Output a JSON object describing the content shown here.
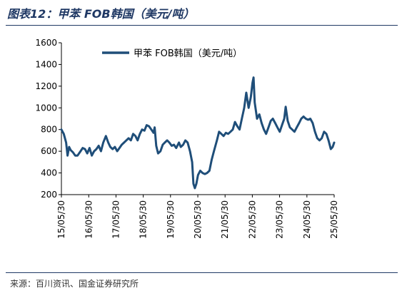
{
  "figure": {
    "title": "图表12：甲苯 FOB韩国（美元/吨）",
    "source": "来源：百川资讯、国金证券研究所"
  },
  "chart_data": {
    "type": "line",
    "legend": {
      "position": "top-left",
      "entries": [
        "甲苯 FOB韩国（美元/吨）"
      ]
    },
    "grid": false,
    "xlabel": "",
    "ylabel": "",
    "ylim": [
      200,
      1600
    ],
    "yticks": [
      200,
      400,
      600,
      800,
      1000,
      1200,
      1400,
      1600
    ],
    "xlim": [
      "2015-05-30",
      "2025-05-30"
    ],
    "xticks": [
      "15/05/30",
      "16/05/30",
      "17/05/30",
      "18/05/30",
      "19/05/30",
      "20/05/30",
      "21/05/30",
      "22/05/30",
      "23/05/30",
      "24/05/30",
      "25/05/30"
    ],
    "series": [
      {
        "name": "甲苯 FOB韩国（美元/吨）",
        "color": "#1f4e79",
        "points": [
          [
            "2015-05-30",
            800
          ],
          [
            "2015-07-01",
            760
          ],
          [
            "2015-08-01",
            680
          ],
          [
            "2015-08-20",
            560
          ],
          [
            "2015-09-10",
            640
          ],
          [
            "2015-10-01",
            610
          ],
          [
            "2015-11-01",
            590
          ],
          [
            "2015-12-01",
            560
          ],
          [
            "2016-01-01",
            560
          ],
          [
            "2016-02-10",
            600
          ],
          [
            "2016-03-10",
            630
          ],
          [
            "2016-04-10",
            620
          ],
          [
            "2016-05-10",
            580
          ],
          [
            "2016-06-10",
            630
          ],
          [
            "2016-07-10",
            560
          ],
          [
            "2016-08-10",
            600
          ],
          [
            "2016-09-10",
            620
          ],
          [
            "2016-10-10",
            650
          ],
          [
            "2016-11-10",
            600
          ],
          [
            "2016-12-10",
            680
          ],
          [
            "2017-01-15",
            740
          ],
          [
            "2017-02-15",
            680
          ],
          [
            "2017-03-15",
            640
          ],
          [
            "2017-04-15",
            620
          ],
          [
            "2017-05-15",
            640
          ],
          [
            "2017-06-15",
            600
          ],
          [
            "2017-07-15",
            630
          ],
          [
            "2017-08-15",
            660
          ],
          [
            "2017-09-15",
            680
          ],
          [
            "2017-10-15",
            700
          ],
          [
            "2017-11-15",
            720
          ],
          [
            "2017-12-15",
            700
          ],
          [
            "2018-01-15",
            760
          ],
          [
            "2018-02-15",
            740
          ],
          [
            "2018-03-15",
            700
          ],
          [
            "2018-04-15",
            760
          ],
          [
            "2018-05-15",
            800
          ],
          [
            "2018-06-15",
            790
          ],
          [
            "2018-07-15",
            840
          ],
          [
            "2018-08-15",
            830
          ],
          [
            "2018-09-15",
            800
          ],
          [
            "2018-10-15",
            770
          ],
          [
            "2018-10-30",
            820
          ],
          [
            "2018-11-20",
            650
          ],
          [
            "2018-12-15",
            580
          ],
          [
            "2019-01-15",
            600
          ],
          [
            "2019-02-15",
            660
          ],
          [
            "2019-03-15",
            680
          ],
          [
            "2019-04-15",
            700
          ],
          [
            "2019-05-15",
            680
          ],
          [
            "2019-06-15",
            650
          ],
          [
            "2019-07-15",
            660
          ],
          [
            "2019-08-15",
            630
          ],
          [
            "2019-09-20",
            680
          ],
          [
            "2019-10-15",
            640
          ],
          [
            "2019-11-15",
            660
          ],
          [
            "2019-12-15",
            700
          ],
          [
            "2020-01-15",
            680
          ],
          [
            "2020-02-15",
            600
          ],
          [
            "2020-03-15",
            500
          ],
          [
            "2020-04-01",
            300
          ],
          [
            "2020-04-20",
            260
          ],
          [
            "2020-05-10",
            300
          ],
          [
            "2020-06-01",
            380
          ],
          [
            "2020-07-01",
            420
          ],
          [
            "2020-08-01",
            400
          ],
          [
            "2020-09-01",
            390
          ],
          [
            "2020-10-01",
            400
          ],
          [
            "2020-11-01",
            420
          ],
          [
            "2020-12-01",
            520
          ],
          [
            "2021-01-01",
            600
          ],
          [
            "2021-02-10",
            700
          ],
          [
            "2021-03-10",
            780
          ],
          [
            "2021-04-10",
            760
          ],
          [
            "2021-05-10",
            740
          ],
          [
            "2021-06-10",
            770
          ],
          [
            "2021-07-10",
            760
          ],
          [
            "2021-08-10",
            780
          ],
          [
            "2021-09-10",
            800
          ],
          [
            "2021-10-10",
            870
          ],
          [
            "2021-11-10",
            830
          ],
          [
            "2021-12-10",
            800
          ],
          [
            "2022-01-10",
            900
          ],
          [
            "2022-02-10",
            1000
          ],
          [
            "2022-03-10",
            1140
          ],
          [
            "2022-04-10",
            1000
          ],
          [
            "2022-05-10",
            1100
          ],
          [
            "2022-06-01",
            1230
          ],
          [
            "2022-06-15",
            1280
          ],
          [
            "2022-07-01",
            1050
          ],
          [
            "2022-08-01",
            900
          ],
          [
            "2022-09-01",
            940
          ],
          [
            "2022-10-01",
            860
          ],
          [
            "2022-11-01",
            800
          ],
          [
            "2022-12-01",
            760
          ],
          [
            "2023-01-01",
            820
          ],
          [
            "2023-02-01",
            880
          ],
          [
            "2023-03-01",
            900
          ],
          [
            "2023-04-01",
            860
          ],
          [
            "2023-05-01",
            820
          ],
          [
            "2023-06-01",
            780
          ],
          [
            "2023-07-01",
            840
          ],
          [
            "2023-08-01",
            900
          ],
          [
            "2023-08-20",
            1010
          ],
          [
            "2023-09-15",
            880
          ],
          [
            "2023-10-15",
            820
          ],
          [
            "2023-11-15",
            800
          ],
          [
            "2023-12-15",
            780
          ],
          [
            "2024-01-15",
            820
          ],
          [
            "2024-02-15",
            860
          ],
          [
            "2024-03-15",
            900
          ],
          [
            "2024-04-15",
            920
          ],
          [
            "2024-05-15",
            900
          ],
          [
            "2024-06-15",
            890
          ],
          [
            "2024-07-15",
            900
          ],
          [
            "2024-08-15",
            860
          ],
          [
            "2024-09-15",
            780
          ],
          [
            "2024-10-15",
            720
          ],
          [
            "2024-11-15",
            700
          ],
          [
            "2024-12-15",
            720
          ],
          [
            "2025-01-15",
            780
          ],
          [
            "2025-02-15",
            760
          ],
          [
            "2025-03-15",
            700
          ],
          [
            "2025-04-15",
            620
          ],
          [
            "2025-05-10",
            640
          ],
          [
            "2025-05-30",
            680
          ]
        ]
      }
    ]
  }
}
